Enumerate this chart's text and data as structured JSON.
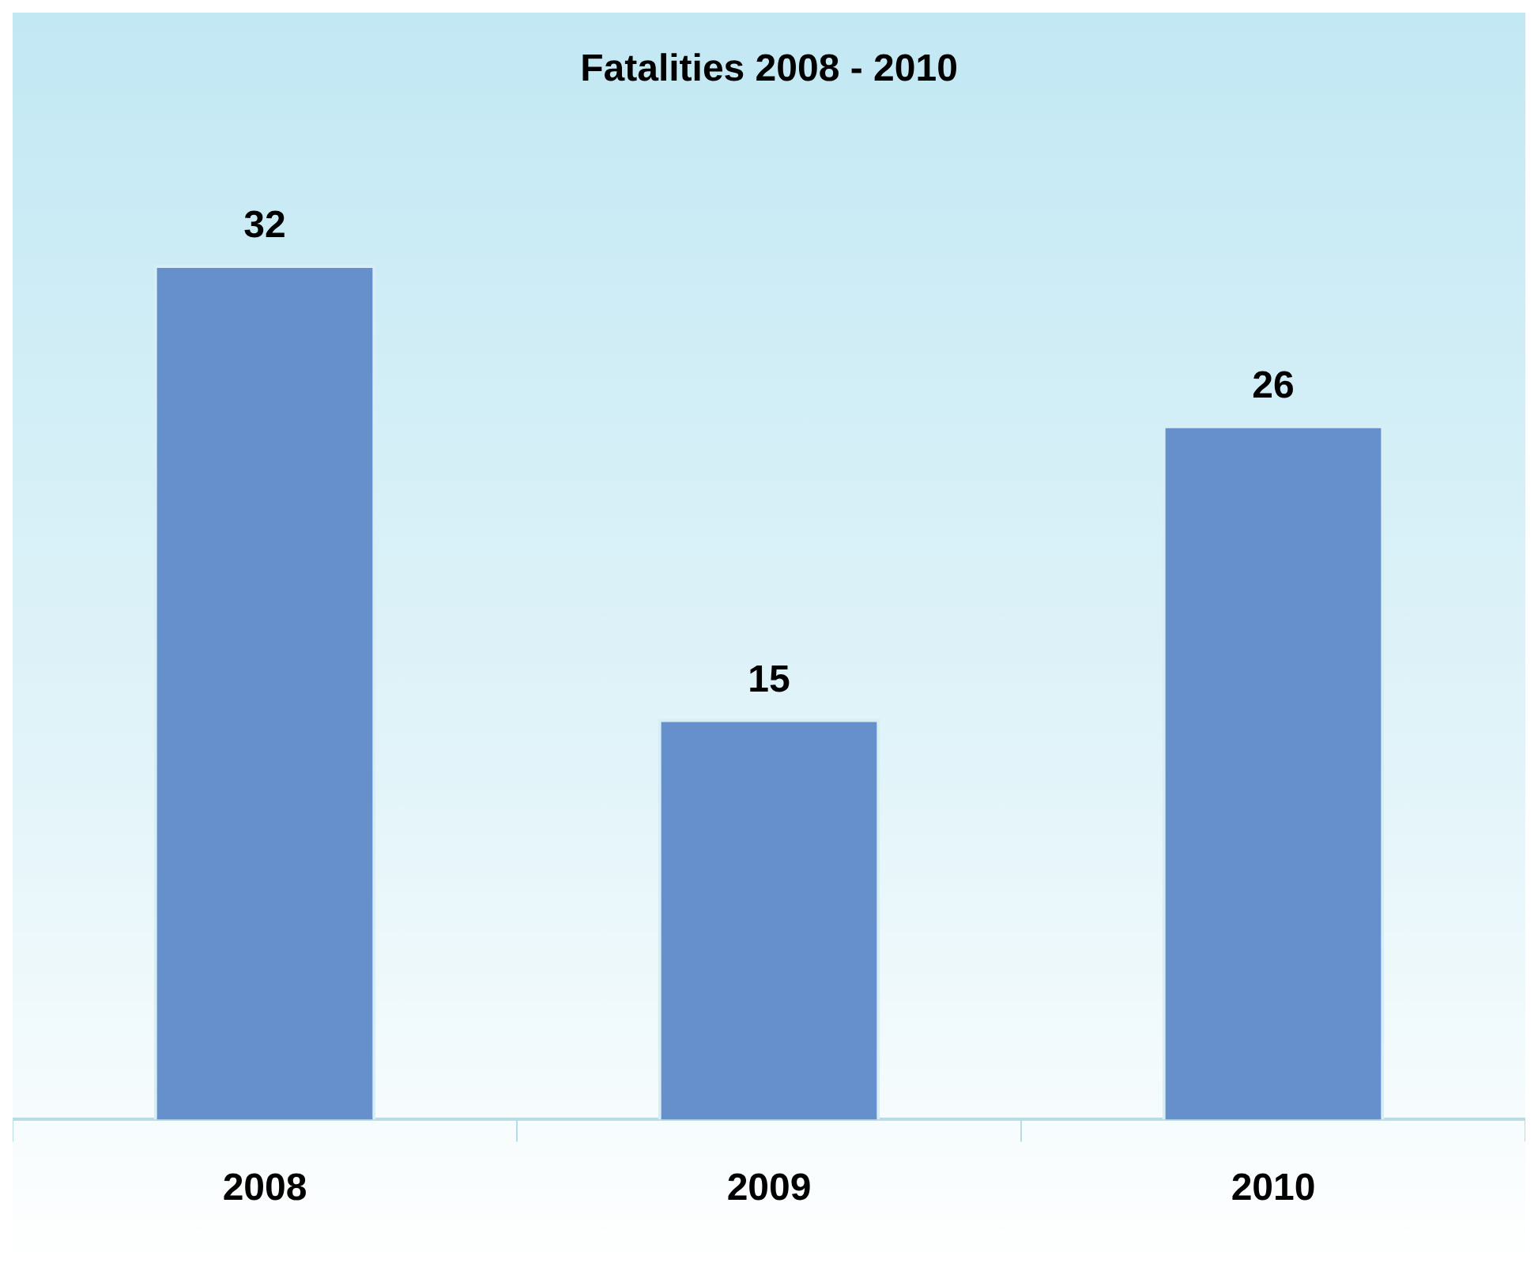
{
  "chart_data": {
    "type": "bar",
    "title": "Fatalities 2008 - 2010",
    "categories": [
      "2008",
      "2009",
      "2010"
    ],
    "values": [
      32,
      15,
      26
    ],
    "color": "#6590cc",
    "data_labels": true,
    "legend": false,
    "grid": false
  }
}
